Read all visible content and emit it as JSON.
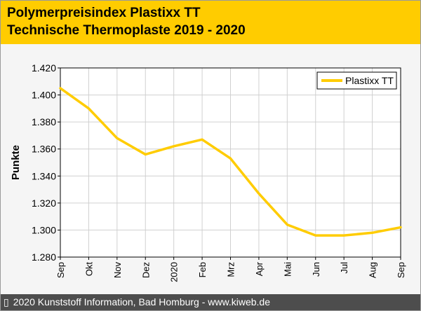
{
  "header": {
    "title_line1": "Polymerpreisindex Plastixx TT",
    "title_line2": "Technische Thermoplaste 2019 - 2020"
  },
  "footer": {
    "icon": "copyright-icon",
    "icon_glyph": "▯",
    "text": "2020 Kunststoff Information, Bad Homburg - www.kiweb.de"
  },
  "colors": {
    "header_bg": "#ffcc00",
    "line": "#ffcc00",
    "footer_bg": "#4d4d4d",
    "plot_bg": "#ffffff"
  },
  "chart_data": {
    "type": "line",
    "title": "",
    "xlabel": "",
    "ylabel": "Punkte",
    "categories": [
      "Sep",
      "Okt",
      "Nov",
      "Dez",
      "2020",
      "Feb",
      "Mrz",
      "Apr",
      "Mai",
      "Jun",
      "Jul",
      "Aug",
      "Sep"
    ],
    "ylim": [
      1.28,
      1.42
    ],
    "yticks": [
      1.28,
      1.3,
      1.32,
      1.34,
      1.36,
      1.38,
      1.4,
      1.42
    ],
    "ytick_labels": [
      "1.280",
      "1.300",
      "1.320",
      "1.340",
      "1.360",
      "1.380",
      "1.400",
      "1.420"
    ],
    "grid": true,
    "legend_position": "top-right",
    "series": [
      {
        "name": "Plastixx TT",
        "values": [
          1.405,
          1.39,
          1.368,
          1.356,
          1.362,
          1.367,
          1.353,
          1.327,
          1.304,
          1.296,
          1.296,
          1.298,
          1.302
        ]
      }
    ]
  }
}
